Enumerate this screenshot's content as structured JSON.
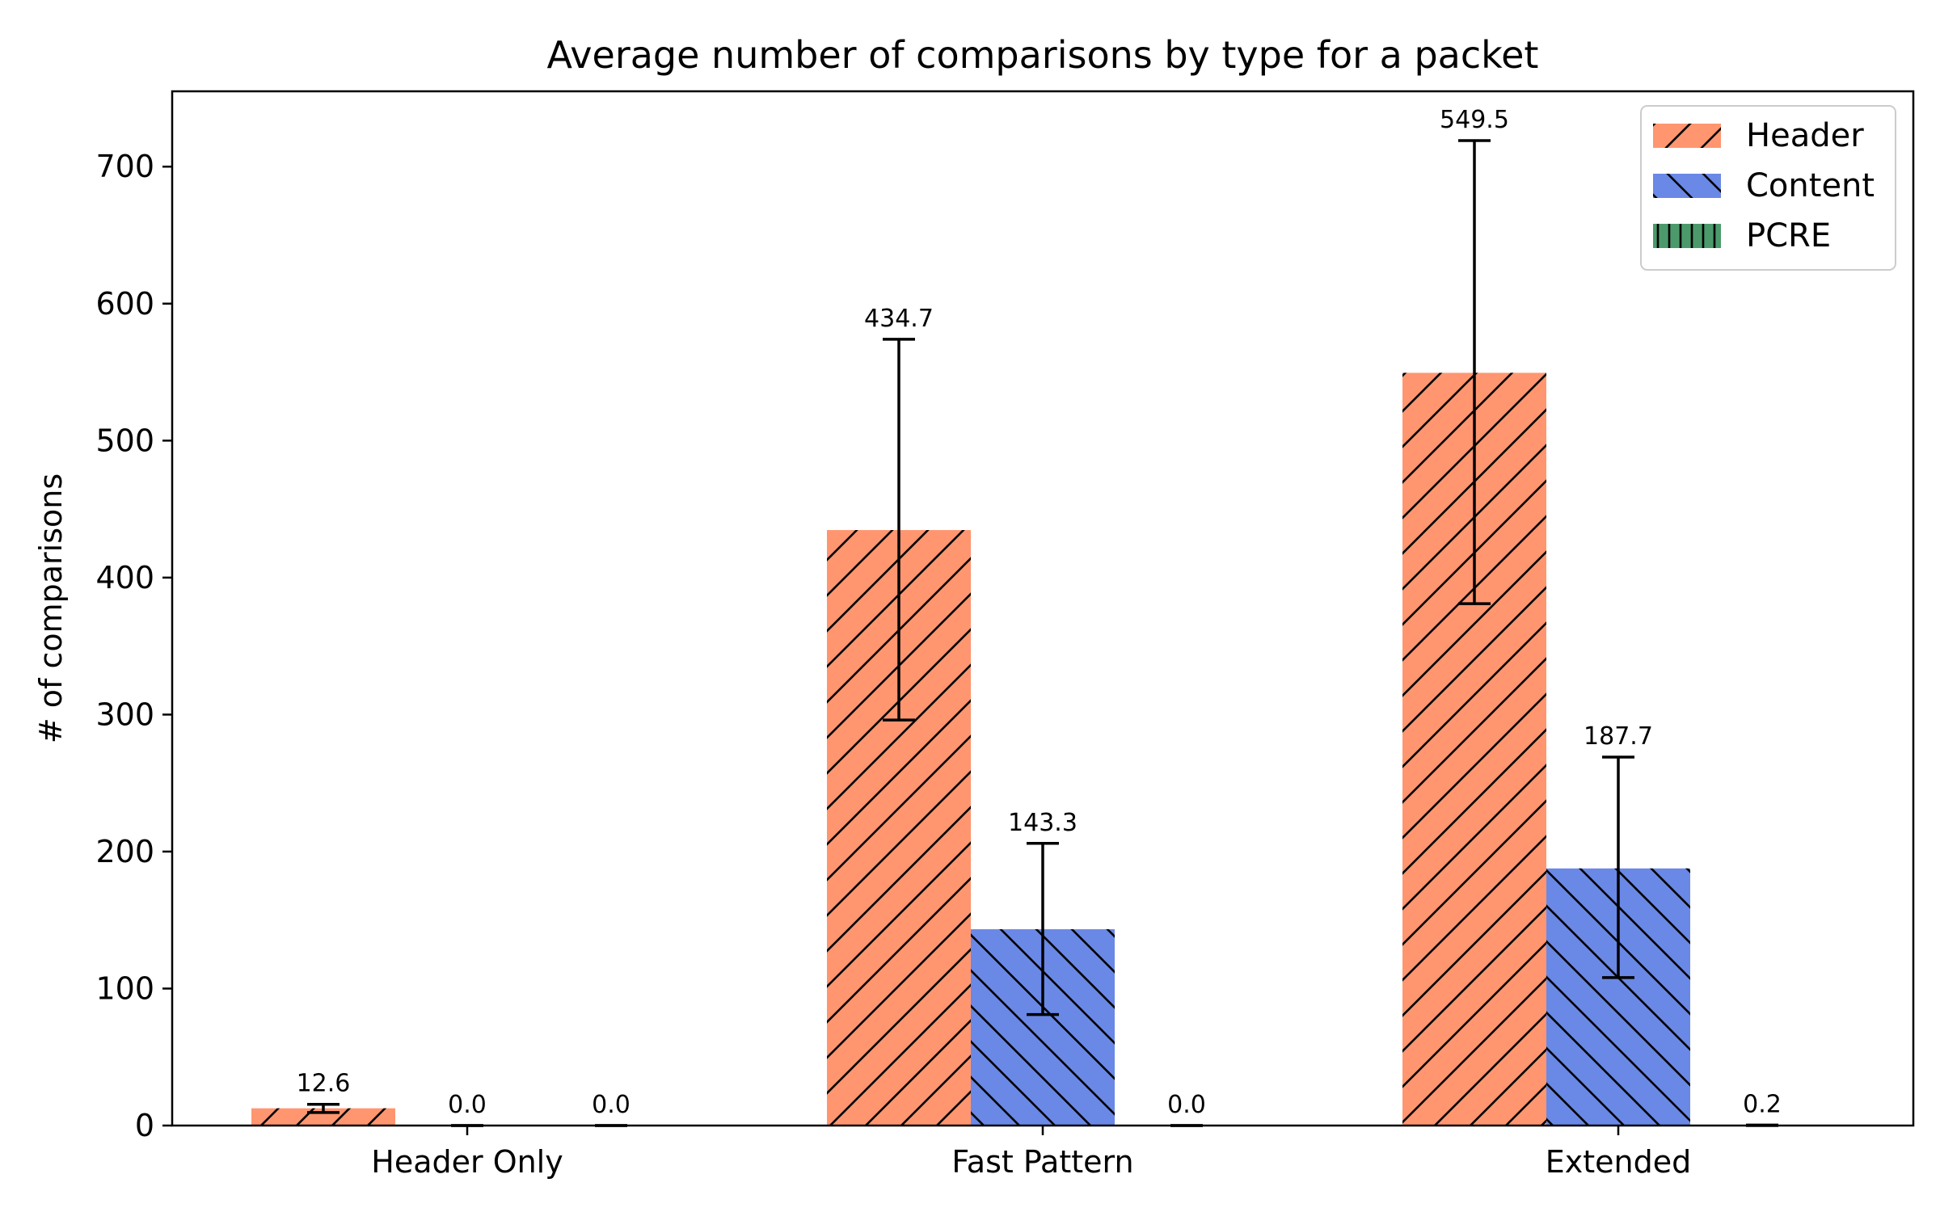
{
  "chart_data": {
    "type": "bar",
    "title": "Average number of comparisons by type for a packet",
    "xlabel": "",
    "ylabel": "# of comparisons",
    "ylim": [
      0,
      755
    ],
    "yticks": [
      0,
      100,
      200,
      300,
      400,
      500,
      600,
      700
    ],
    "categories": [
      "Header Only",
      "Fast Pattern",
      "Extended"
    ],
    "grid": false,
    "legend_position": "top-right",
    "series": [
      {
        "name": "Header",
        "color": "#FF9670",
        "hatch": "forward-diagonal",
        "values": [
          12.6,
          434.7,
          549.5
        ],
        "error_low": [
          9.5,
          296.0,
          381.0
        ],
        "error_high": [
          15.5,
          574.0,
          719.0
        ],
        "labels": [
          "12.6",
          "434.7",
          "549.5"
        ]
      },
      {
        "name": "Content",
        "color": "#6A88E6",
        "hatch": "back-diagonal",
        "values": [
          0.0,
          143.3,
          187.7
        ],
        "error_low": [
          0.0,
          81.0,
          108.0
        ],
        "error_high": [
          0.0,
          206.0,
          269.0
        ],
        "labels": [
          "0.0",
          "143.3",
          "187.7"
        ]
      },
      {
        "name": "PCRE",
        "color": "#4C9A6B",
        "hatch": "vertical",
        "values": [
          0.0,
          0.0,
          0.2
        ],
        "error_low": [
          0.0,
          0.0,
          0.0
        ],
        "error_high": [
          0.0,
          0.0,
          0.4
        ],
        "labels": [
          "0.0",
          "0.0",
          "0.2"
        ]
      }
    ]
  }
}
